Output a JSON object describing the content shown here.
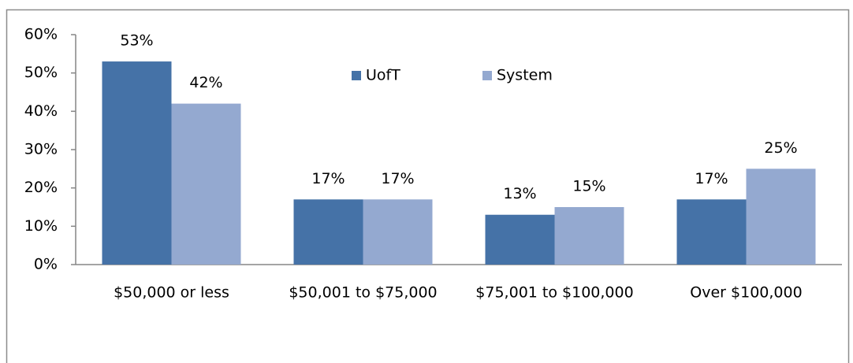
{
  "chart_data": {
    "type": "bar",
    "categories": [
      "$50,000 or less",
      "$50,001 to $75,000",
      "$75,001 to $100,000",
      "Over $100,000"
    ],
    "series": [
      {
        "name": "UofT",
        "color": "#4572a7",
        "values": [
          53,
          17,
          13,
          17
        ],
        "value_labels": [
          "53%",
          "17%",
          "13%",
          "17%"
        ]
      },
      {
        "name": "System",
        "color": "#94a9d0",
        "values": [
          42,
          17,
          15,
          25
        ],
        "value_labels": [
          "42%",
          "17%",
          "15%",
          "25%"
        ]
      }
    ],
    "ylim": [
      0,
      60
    ],
    "yticks": [
      {
        "value": 0,
        "label": "0%"
      },
      {
        "value": 10,
        "label": "10%"
      },
      {
        "value": 20,
        "label": "20%"
      },
      {
        "value": 30,
        "label": "30%"
      },
      {
        "value": 40,
        "label": "40%"
      },
      {
        "value": 50,
        "label": "50%"
      },
      {
        "value": 60,
        "label": "60%"
      }
    ],
    "grid": false,
    "legend": "top"
  }
}
